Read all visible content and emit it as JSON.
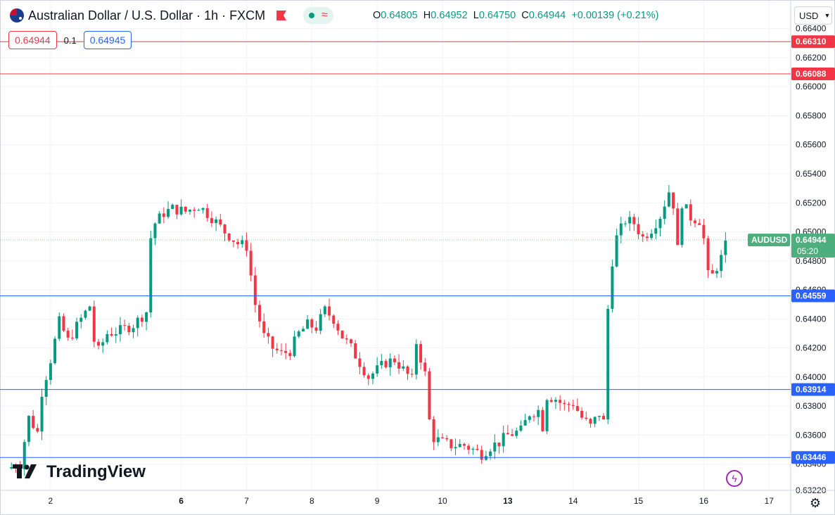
{
  "header": {
    "symbol_title": "Australian Dollar / U.S. Dollar · 1h · FXCM",
    "ohlc": {
      "o_label": "O",
      "o": "0.64805",
      "h_label": "H",
      "h": "0.64952",
      "l_label": "L",
      "l": "0.64750",
      "c_label": "C",
      "c": "0.64944",
      "change": "+0.00139 (+0.21%)"
    },
    "sell_price": "0.64944",
    "spread": "0.1",
    "buy_price": "0.64945",
    "currency": "USD"
  },
  "branding": {
    "logo_text": "TradingView"
  },
  "colors": {
    "up": "#089981",
    "down": "#f23645",
    "resistance": "#f23645",
    "support": "#2962ff",
    "price_label": "#4caf7d"
  },
  "chart_data": {
    "type": "candlestick",
    "title": "Australian Dollar / U.S. Dollar · 1h · FXCM",
    "ylim": [
      0.632,
      0.665
    ],
    "y_ticks": [
      "0.66400",
      "0.66200",
      "0.66000",
      "0.65800",
      "0.65600",
      "0.65400",
      "0.65200",
      "0.65000",
      "0.64800",
      "0.64600",
      "0.64400",
      "0.64200",
      "0.64000",
      "0.63800",
      "0.63600",
      "0.63400",
      "0.63220"
    ],
    "x_ticks": [
      {
        "label": "2",
        "bar": 10
      },
      {
        "label": "6",
        "bar": 40
      },
      {
        "label": "7",
        "bar": 55
      },
      {
        "label": "8",
        "bar": 70
      },
      {
        "label": "9",
        "bar": 85
      },
      {
        "label": "10",
        "bar": 100
      },
      {
        "label": "13",
        "bar": 115
      },
      {
        "label": "14",
        "bar": 130
      },
      {
        "label": "15",
        "bar": 145
      },
      {
        "label": "16",
        "bar": 160
      },
      {
        "label": "17",
        "bar": 175
      }
    ],
    "resistance_levels": [
      "0.66310",
      "0.66088"
    ],
    "support_levels": [
      "0.64559",
      "0.63914",
      "0.63446"
    ],
    "last_price": {
      "symbol": "AUDUSD",
      "price": "0.64944",
      "countdown": "05:20"
    },
    "close_path": [
      [
        0,
        0.6337
      ],
      [
        3,
        0.634
      ],
      [
        5,
        0.6372
      ],
      [
        7,
        0.6362
      ],
      [
        8,
        0.639
      ],
      [
        10,
        0.6412
      ],
      [
        12,
        0.6438
      ],
      [
        14,
        0.6425
      ],
      [
        17,
        0.644
      ],
      [
        19,
        0.6449
      ],
      [
        20,
        0.6425
      ],
      [
        21,
        0.6418
      ],
      [
        23,
        0.643
      ],
      [
        26,
        0.6432
      ],
      [
        29,
        0.6436
      ],
      [
        32,
        0.6445
      ],
      [
        33,
        0.6496
      ],
      [
        34,
        0.6506
      ],
      [
        36,
        0.6513
      ],
      [
        38,
        0.6516
      ],
      [
        41,
        0.6514
      ],
      [
        44,
        0.6518
      ],
      [
        47,
        0.651
      ],
      [
        50,
        0.65
      ],
      [
        53,
        0.6492
      ],
      [
        55,
        0.649
      ],
      [
        57,
        0.645
      ],
      [
        59,
        0.6428
      ],
      [
        61,
        0.642
      ],
      [
        63,
        0.6416
      ],
      [
        65,
        0.6418
      ],
      [
        67,
        0.643
      ],
      [
        69,
        0.6436
      ],
      [
        71,
        0.6434
      ],
      [
        73,
        0.6446
      ],
      [
        75,
        0.644
      ],
      [
        77,
        0.6428
      ],
      [
        79,
        0.642
      ],
      [
        81,
        0.641
      ],
      [
        83,
        0.64
      ],
      [
        85,
        0.6405
      ],
      [
        87,
        0.641
      ],
      [
        89,
        0.6412
      ],
      [
        91,
        0.6405
      ],
      [
        93,
        0.6398
      ],
      [
        94,
        0.6424
      ],
      [
        96,
        0.6402
      ],
      [
        97,
        0.637
      ],
      [
        98,
        0.6358
      ],
      [
        100,
        0.6355
      ],
      [
        102,
        0.6353
      ],
      [
        105,
        0.6353
      ],
      [
        107,
        0.635
      ],
      [
        109,
        0.6347
      ],
      [
        111,
        0.6352
      ],
      [
        113,
        0.6355
      ],
      [
        115,
        0.636
      ],
      [
        118,
        0.6363
      ],
      [
        120,
        0.6375
      ],
      [
        122,
        0.6377
      ],
      [
        123,
        0.6366
      ],
      [
        124,
        0.6387
      ],
      [
        126,
        0.6385
      ],
      [
        128,
        0.638
      ],
      [
        130,
        0.6382
      ],
      [
        132,
        0.6372
      ],
      [
        134,
        0.6366
      ],
      [
        136,
        0.6375
      ],
      [
        137,
        0.6369
      ],
      [
        138,
        0.6447
      ],
      [
        139,
        0.648
      ],
      [
        140,
        0.6496
      ],
      [
        142,
        0.6508
      ],
      [
        144,
        0.6506
      ],
      [
        146,
        0.6496
      ],
      [
        148,
        0.6502
      ],
      [
        150,
        0.6511
      ],
      [
        152,
        0.6528
      ],
      [
        153,
        0.6519
      ],
      [
        154,
        0.6488
      ],
      [
        155,
        0.652
      ],
      [
        157,
        0.651
      ],
      [
        159,
        0.6508
      ],
      [
        160,
        0.6495
      ],
      [
        161,
        0.647
      ],
      [
        162,
        0.647
      ],
      [
        164,
        0.6482
      ],
      [
        165,
        0.6494
      ]
    ]
  }
}
